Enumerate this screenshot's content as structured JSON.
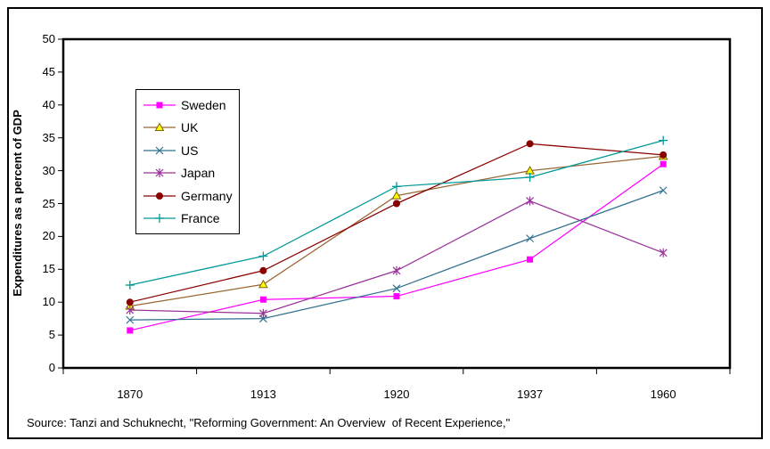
{
  "figure": {
    "background": "#FFFFFF",
    "border_color": "#000000"
  },
  "chart_data": {
    "type": "line",
    "title": "",
    "xlabel": "",
    "ylabel": "Expenditures as a percent of GDP",
    "categories": [
      "1870",
      "1913",
      "1920",
      "1937",
      "1960"
    ],
    "ylim": [
      0,
      50
    ],
    "ytick_step": 5,
    "grid": false,
    "legend_position": "inside-upper-left",
    "series": [
      {
        "name": "Sweden",
        "color": "#FF00FF",
        "marker": "square",
        "values": [
          5.7,
          10.4,
          10.9,
          16.5,
          31.0
        ]
      },
      {
        "name": "UK",
        "color": "#996633",
        "marker": "triangle",
        "marker_fill": "#FFFF00",
        "marker_edge": "#806000",
        "values": [
          9.4,
          12.7,
          26.2,
          30.0,
          32.2
        ]
      },
      {
        "name": "US",
        "color": "#31708F",
        "marker": "x",
        "values": [
          7.3,
          7.5,
          12.1,
          19.7,
          27.0
        ]
      },
      {
        "name": "Japan",
        "color": "#993399",
        "marker": "asterisk",
        "values": [
          8.8,
          8.3,
          14.8,
          25.4,
          17.5
        ]
      },
      {
        "name": "Germany",
        "color": "#8B0000",
        "marker": "circle",
        "values": [
          10.0,
          14.8,
          25.0,
          34.1,
          32.4
        ]
      },
      {
        "name": "France",
        "color": "#009999",
        "marker": "plus",
        "values": [
          12.6,
          17.0,
          27.6,
          29.0,
          34.6
        ]
      }
    ]
  },
  "source_note": "Source: Tanzi and Schuknecht, \"Reforming Government: An Overview  of Recent Experience,\""
}
